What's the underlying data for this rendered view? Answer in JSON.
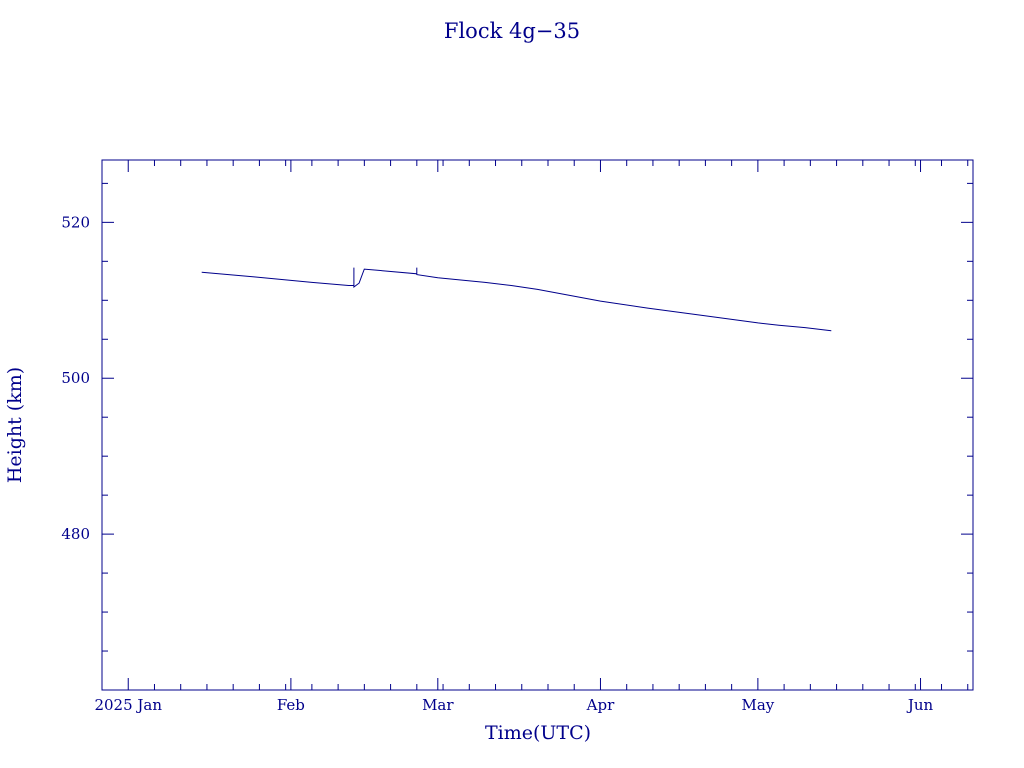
{
  "chart_data": {
    "type": "line",
    "title": "Flock 4g−35",
    "xlabel": "Time(UTC)",
    "ylabel": "Height (km)",
    "x_start": "2024-12-27",
    "x_end": "2025-06-11",
    "ylim": [
      460,
      528
    ],
    "x_tick_labels": [
      {
        "date": "2025-01-01",
        "label": "2025 Jan"
      },
      {
        "date": "2025-02-01",
        "label": "Feb"
      },
      {
        "date": "2025-03-01",
        "label": "Mar"
      },
      {
        "date": "2025-04-01",
        "label": "Apr"
      },
      {
        "date": "2025-05-01",
        "label": "May"
      },
      {
        "date": "2025-06-01",
        "label": "Jun"
      }
    ],
    "y_tick_labels": [
      480,
      500,
      520
    ],
    "y_minor_step": 5,
    "grid": false,
    "color": "#00008b",
    "series": [
      {
        "x": [
          "2025-01-15",
          "2025-01-25",
          "2025-02-05",
          "2025-02-12",
          "2025-02-13",
          "2025-02-13",
          "2025-02-13",
          "2025-02-14",
          "2025-02-15",
          "2025-02-25",
          "2025-02-25",
          "2025-02-25",
          "2025-03-01",
          "2025-03-10",
          "2025-03-15",
          "2025-03-20",
          "2025-04-01",
          "2025-04-10",
          "2025-04-20",
          "2025-05-01",
          "2025-05-05",
          "2025-05-10",
          "2025-05-15"
        ],
        "y": [
          513.6,
          513.0,
          512.3,
          511.9,
          511.9,
          514.2,
          511.7,
          512.2,
          514.0,
          513.4,
          514.2,
          513.3,
          512.9,
          512.3,
          511.9,
          511.4,
          509.9,
          509.0,
          508.1,
          507.1,
          506.8,
          506.5,
          506.1
        ]
      }
    ]
  }
}
